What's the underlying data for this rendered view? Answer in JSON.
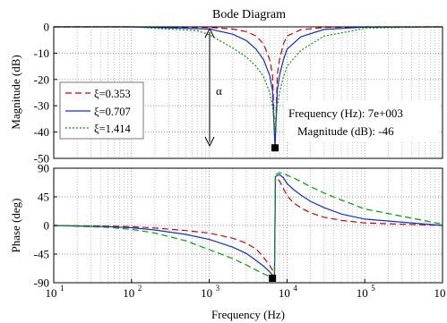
{
  "chart_data": [
    {
      "type": "line",
      "title": "Bode Diagram",
      "ylabel": "Magnitude (dB)",
      "xscale": "log",
      "xlim": [
        10,
        1000000
      ],
      "ylim": [
        -50,
        0
      ],
      "yticks": [
        0,
        -10,
        -20,
        -30,
        -40,
        -50
      ],
      "ytick_labels": [
        "0",
        "-10",
        "-20",
        "-30",
        "-40",
        "-50"
      ],
      "grid": true,
      "legend_position": "left-middle",
      "series": [
        {
          "name": "ξ=0.353",
          "color": "#d40000",
          "dash": "dash",
          "x": [
            10,
            100,
            1000,
            2000,
            3000,
            4000,
            5000,
            6000,
            6500,
            7000,
            7500,
            8000,
            9000,
            10000,
            15000,
            30000,
            100000,
            1000000
          ],
          "y": [
            0,
            0,
            -0.2,
            -0.8,
            -1.8,
            -3.5,
            -6.5,
            -12.5,
            -18,
            -46,
            -18,
            -12.5,
            -6.5,
            -3.5,
            -1.1,
            -0.25,
            0,
            0
          ]
        },
        {
          "name": "ξ=0.707",
          "color": "#1030c8",
          "dash": "solid",
          "x": [
            10,
            100,
            1000,
            2000,
            3000,
            4000,
            5000,
            6000,
            6500,
            7000,
            7500,
            8000,
            9000,
            10000,
            15000,
            30000,
            100000,
            1000000
          ],
          "y": [
            0,
            0,
            -0.8,
            -2.8,
            -5.2,
            -8.5,
            -12.5,
            -18.5,
            -24,
            -46,
            -24,
            -18.5,
            -12.5,
            -8.5,
            -3.8,
            -1.0,
            -0.1,
            0
          ]
        },
        {
          "name": "ξ=1.414",
          "color": "#00a000",
          "dash": "dot",
          "x": [
            10,
            100,
            700,
            1000,
            2000,
            3000,
            4000,
            5000,
            6000,
            6500,
            7000,
            7500,
            8000,
            9000,
            10000,
            15000,
            30000,
            70000,
            100000,
            1000000
          ],
          "y": [
            0,
            0,
            -1.5,
            -3,
            -8,
            -11.5,
            -15,
            -19,
            -25,
            -30,
            -40,
            -30,
            -25,
            -19,
            -15,
            -9,
            -3.5,
            -1.5,
            -0.5,
            0
          ]
        }
      ],
      "annotations": {
        "alpha_label": "α",
        "datatip_frequency": "Frequency (Hz): 7e+003",
        "datatip_magnitude": "Magnitude (dB): -46"
      }
    },
    {
      "type": "line",
      "xlabel": "Frequency  (Hz)",
      "ylabel": "Phase (deg)",
      "xscale": "log",
      "xlim": [
        10,
        1000000
      ],
      "ylim": [
        -90,
        90
      ],
      "yticks": [
        90,
        45,
        0,
        -45,
        -90
      ],
      "ytick_labels": [
        "90",
        "45",
        "0",
        "-45",
        "-90"
      ],
      "xtick_labels": [
        {
          "base": "10",
          "exp": "1"
        },
        {
          "base": "10",
          "exp": "2"
        },
        {
          "base": "10",
          "exp": "3"
        },
        {
          "base": "10",
          "exp": "4"
        },
        {
          "base": "10",
          "exp": "5"
        },
        {
          "base": "10",
          "exp": "6"
        }
      ],
      "grid": true,
      "series": [
        {
          "name": "ξ=0.353",
          "color": "#d40000",
          "dash": "dash",
          "x": [
            10,
            50,
            100,
            200,
            500,
            1000,
            2000,
            3000,
            4000,
            5000,
            6000,
            6900,
            7100,
            8000,
            9000,
            10000,
            12000,
            15000,
            20000,
            30000,
            50000,
            100000,
            1000000
          ],
          "y": [
            0,
            -1,
            -2,
            -4,
            -8,
            -12,
            -20,
            -28,
            -37,
            -50,
            -63,
            -75,
            75,
            70,
            58,
            47,
            36,
            28,
            20,
            13,
            8,
            4,
            0
          ]
        },
        {
          "name": "ξ=0.707",
          "color": "#1030c8",
          "dash": "solid",
          "x": [
            10,
            50,
            100,
            200,
            500,
            1000,
            2000,
            3000,
            4000,
            5000,
            6000,
            6900,
            7100,
            8000,
            9000,
            10000,
            12000,
            15000,
            20000,
            30000,
            50000,
            100000,
            1000000
          ],
          "y": [
            0,
            -2,
            -3.5,
            -7,
            -14,
            -22,
            -34,
            -44,
            -55,
            -64,
            -73,
            -81,
            77,
            80,
            75,
            66,
            57,
            48,
            38,
            28,
            18,
            10,
            0
          ]
        },
        {
          "name": "ξ=1.414",
          "color": "#00a000",
          "dash": "dash",
          "x": [
            10,
            50,
            100,
            200,
            500,
            1000,
            2000,
            3000,
            4000,
            5000,
            6000,
            6900,
            7100,
            8000,
            9000,
            10000,
            12000,
            15000,
            20000,
            30000,
            50000,
            100000,
            1000000
          ],
          "y": [
            0,
            -3,
            -6,
            -12,
            -24,
            -38,
            -52,
            -62,
            -70,
            -76,
            -80,
            -84,
            80,
            83,
            82,
            79,
            75,
            69,
            61,
            51,
            40,
            26,
            2
          ]
        }
      ],
      "markers": [
        {
          "x": 7000,
          "y": -46,
          "panel": "magnitude"
        },
        {
          "x": 6500,
          "y": -83,
          "panel": "phase"
        }
      ]
    }
  ]
}
